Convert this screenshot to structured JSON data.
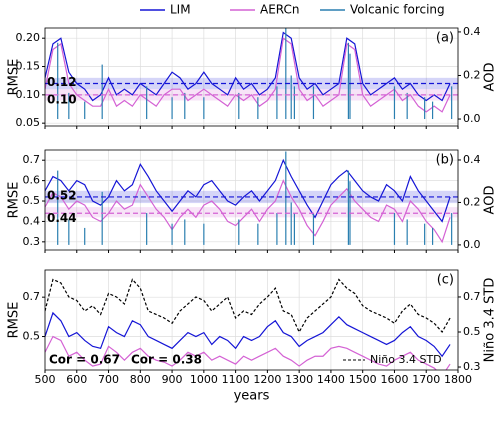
{
  "chart_data": [
    {
      "type": "line",
      "panel_label": "(a)",
      "ylabel": "RMSE",
      "y2label": "AOD",
      "xlim": [
        500,
        1800
      ],
      "xticks": [
        500,
        600,
        700,
        800,
        900,
        1000,
        1100,
        1200,
        1300,
        1400,
        1500,
        1600,
        1700,
        1800
      ],
      "ylim": [
        0.045,
        0.218
      ],
      "yticks": [
        0.05,
        {
          "value": 0.1,
          "label": "0.10"
        },
        0.15,
        {
          "value": 0.2,
          "label": "0.20"
        }
      ],
      "y2lim": [
        -0.032,
        0.418
      ],
      "y2ticks": [
        {
          "value": 0,
          "label": "0.0"
        },
        0.2,
        0.4
      ],
      "grid": true,
      "hlines": [
        {
          "value": 0.12,
          "label": "0.12",
          "color": "#1515d6",
          "band": [
            0.11,
            0.13
          ]
        },
        {
          "value": 0.1,
          "label": "0.10",
          "color": "#d462d4",
          "band": [
            0.09,
            0.11
          ]
        }
      ],
      "x": [
        500,
        525,
        550,
        575,
        600,
        625,
        650,
        675,
        700,
        725,
        750,
        775,
        800,
        825,
        850,
        875,
        900,
        925,
        950,
        975,
        1000,
        1025,
        1050,
        1075,
        1100,
        1125,
        1150,
        1175,
        1200,
        1225,
        1250,
        1275,
        1300,
        1325,
        1350,
        1375,
        1400,
        1425,
        1450,
        1475,
        1500,
        1525,
        1550,
        1575,
        1600,
        1625,
        1650,
        1675,
        1700,
        1725,
        1750,
        1775
      ],
      "series": [
        {
          "name": "LIM",
          "color": "#1515d6",
          "values": [
            0.13,
            0.19,
            0.2,
            0.14,
            0.12,
            0.11,
            0.09,
            0.1,
            0.13,
            0.1,
            0.11,
            0.1,
            0.12,
            0.11,
            0.1,
            0.12,
            0.14,
            0.13,
            0.11,
            0.12,
            0.14,
            0.12,
            0.11,
            0.1,
            0.13,
            0.11,
            0.12,
            0.1,
            0.11,
            0.13,
            0.21,
            0.2,
            0.13,
            0.11,
            0.12,
            0.1,
            0.11,
            0.12,
            0.2,
            0.19,
            0.12,
            0.1,
            0.11,
            0.12,
            0.13,
            0.11,
            0.12,
            0.1,
            0.09,
            0.1,
            0.09,
            0.12
          ]
        },
        {
          "name": "AERCn",
          "color": "#d462d4",
          "values": [
            0.11,
            0.18,
            0.19,
            0.12,
            0.1,
            0.09,
            0.08,
            0.08,
            0.11,
            0.08,
            0.09,
            0.08,
            0.1,
            0.09,
            0.08,
            0.1,
            0.11,
            0.11,
            0.09,
            0.1,
            0.11,
            0.1,
            0.09,
            0.08,
            0.1,
            0.09,
            0.1,
            0.08,
            0.09,
            0.11,
            0.2,
            0.19,
            0.11,
            0.09,
            0.1,
            0.08,
            0.09,
            0.1,
            0.19,
            0.18,
            0.1,
            0.08,
            0.09,
            0.1,
            0.11,
            0.09,
            0.1,
            0.08,
            0.07,
            0.08,
            0.07,
            0.1
          ]
        },
        {
          "name": "Volcanic forcing",
          "color": "#2a7fb0",
          "type": "spike",
          "axis": "y2",
          "x": [
            540,
            575,
            625,
            680,
            820,
            900,
            940,
            1000,
            1110,
            1170,
            1230,
            1258,
            1275,
            1285,
            1345,
            1455,
            1460,
            1600,
            1640,
            1695,
            1720,
            1780
          ],
          "values": [
            0.35,
            0.12,
            0.08,
            0.25,
            0.15,
            0.1,
            0.12,
            0.1,
            0.12,
            0.1,
            0.15,
            0.44,
            0.2,
            0.15,
            0.15,
            0.35,
            0.3,
            0.15,
            0.12,
            0.1,
            0.08,
            0.15
          ]
        }
      ]
    },
    {
      "type": "line",
      "panel_label": "(b)",
      "ylabel": "RMSE",
      "y2label": "AOD",
      "xlim": [
        500,
        1800
      ],
      "xticks": [
        500,
        600,
        700,
        800,
        900,
        1000,
        1100,
        1200,
        1300,
        1400,
        1500,
        1600,
        1700,
        1800
      ],
      "ylim": [
        0.26,
        0.75
      ],
      "yticks": [
        0.3,
        0.4,
        0.5,
        0.6,
        0.7
      ],
      "y2lim": [
        -0.024,
        0.447
      ],
      "y2ticks": [
        {
          "value": 0,
          "label": "0.0"
        },
        0.2,
        0.4
      ],
      "grid": true,
      "hlines": [
        {
          "value": 0.52,
          "label": "0.52",
          "color": "#1515d6",
          "band": [
            0.49,
            0.55
          ]
        },
        {
          "value": 0.44,
          "label": "0.44",
          "color": "#d462d4",
          "band": [
            0.42,
            0.47
          ]
        }
      ],
      "x": [
        500,
        525,
        550,
        575,
        600,
        625,
        650,
        675,
        700,
        725,
        750,
        775,
        800,
        825,
        850,
        875,
        900,
        925,
        950,
        975,
        1000,
        1025,
        1050,
        1075,
        1100,
        1125,
        1150,
        1175,
        1200,
        1225,
        1250,
        1275,
        1300,
        1325,
        1350,
        1375,
        1400,
        1425,
        1450,
        1475,
        1500,
        1525,
        1550,
        1575,
        1600,
        1625,
        1650,
        1675,
        1700,
        1725,
        1750,
        1775
      ],
      "series": [
        {
          "name": "LIM",
          "color": "#1515d6",
          "values": [
            0.55,
            0.62,
            0.6,
            0.55,
            0.6,
            0.58,
            0.5,
            0.48,
            0.52,
            0.6,
            0.55,
            0.58,
            0.68,
            0.62,
            0.55,
            0.5,
            0.45,
            0.5,
            0.55,
            0.52,
            0.58,
            0.6,
            0.55,
            0.5,
            0.48,
            0.52,
            0.55,
            0.5,
            0.55,
            0.6,
            0.7,
            0.62,
            0.55,
            0.48,
            0.42,
            0.5,
            0.58,
            0.62,
            0.65,
            0.6,
            0.55,
            0.52,
            0.5,
            0.58,
            0.55,
            0.5,
            0.62,
            0.55,
            0.5,
            0.45,
            0.4,
            0.52
          ]
        },
        {
          "name": "AERCn",
          "color": "#d462d4",
          "values": [
            0.47,
            0.54,
            0.52,
            0.46,
            0.5,
            0.48,
            0.42,
            0.4,
            0.44,
            0.5,
            0.46,
            0.48,
            0.58,
            0.52,
            0.46,
            0.42,
            0.36,
            0.42,
            0.46,
            0.42,
            0.48,
            0.5,
            0.46,
            0.4,
            0.38,
            0.42,
            0.46,
            0.4,
            0.46,
            0.5,
            0.6,
            0.52,
            0.46,
            0.38,
            0.33,
            0.4,
            0.48,
            0.52,
            0.56,
            0.5,
            0.46,
            0.42,
            0.4,
            0.48,
            0.46,
            0.4,
            0.5,
            0.46,
            0.4,
            0.36,
            0.3,
            0.42
          ]
        },
        {
          "name": "Volcanic forcing",
          "color": "#2a7fb0",
          "type": "spike",
          "axis": "y2",
          "x": [
            540,
            575,
            625,
            680,
            820,
            900,
            940,
            1000,
            1110,
            1170,
            1230,
            1258,
            1275,
            1285,
            1345,
            1455,
            1460,
            1600,
            1640,
            1695,
            1720,
            1780
          ],
          "values": [
            0.35,
            0.12,
            0.08,
            0.25,
            0.15,
            0.1,
            0.12,
            0.1,
            0.12,
            0.1,
            0.15,
            0.44,
            0.2,
            0.15,
            0.15,
            0.35,
            0.3,
            0.15,
            0.12,
            0.1,
            0.08,
            0.15
          ]
        }
      ]
    },
    {
      "type": "line",
      "panel_label": "(c)",
      "ylabel": "RMSE",
      "y2label": "Niño 3.4 STD",
      "xlabel": "years",
      "xlim": [
        500,
        1800
      ],
      "xticks": [
        500,
        600,
        700,
        800,
        900,
        1000,
        1100,
        1200,
        1300,
        1400,
        1500,
        1600,
        1700,
        1800
      ],
      "xtick_labels": true,
      "ylim": [
        0.33,
        0.838
      ],
      "yticks": [
        0.5,
        0.7
      ],
      "y2lim": [
        0.283,
        0.854
      ],
      "y2ticks": [
        0.3,
        0.5,
        0.7
      ],
      "grid": true,
      "legend": "lower right",
      "annotations": [
        {
          "text": "Cor = 0.67",
          "color": "#1515d6"
        },
        {
          "text": "Cor = 0.38",
          "color": "#d462d4"
        }
      ],
      "x": [
        500,
        525,
        550,
        575,
        600,
        625,
        650,
        675,
        700,
        725,
        750,
        775,
        800,
        825,
        850,
        875,
        900,
        925,
        950,
        975,
        1000,
        1025,
        1050,
        1075,
        1100,
        1125,
        1150,
        1175,
        1200,
        1225,
        1250,
        1275,
        1300,
        1325,
        1350,
        1375,
        1400,
        1425,
        1450,
        1475,
        1500,
        1525,
        1550,
        1575,
        1600,
        1625,
        1650,
        1675,
        1700,
        1725,
        1750,
        1775
      ],
      "series": [
        {
          "name": "LIM",
          "color": "#1515d6",
          "values": [
            0.5,
            0.62,
            0.58,
            0.5,
            0.52,
            0.48,
            0.45,
            0.44,
            0.55,
            0.52,
            0.5,
            0.58,
            0.56,
            0.5,
            0.48,
            0.46,
            0.44,
            0.48,
            0.52,
            0.5,
            0.52,
            0.46,
            0.5,
            0.48,
            0.44,
            0.5,
            0.48,
            0.5,
            0.55,
            0.58,
            0.52,
            0.5,
            0.45,
            0.48,
            0.5,
            0.52,
            0.56,
            0.6,
            0.56,
            0.54,
            0.52,
            0.5,
            0.48,
            0.46,
            0.48,
            0.52,
            0.55,
            0.5,
            0.48,
            0.45,
            0.4,
            0.46
          ]
        },
        {
          "name": "AERCn",
          "color": "#d462d4",
          "values": [
            0.42,
            0.5,
            0.48,
            0.4,
            0.42,
            0.38,
            0.35,
            0.36,
            0.45,
            0.42,
            0.38,
            0.42,
            0.44,
            0.4,
            0.38,
            0.37,
            0.35,
            0.38,
            0.42,
            0.4,
            0.42,
            0.38,
            0.4,
            0.38,
            0.36,
            0.4,
            0.38,
            0.4,
            0.42,
            0.44,
            0.4,
            0.38,
            0.35,
            0.38,
            0.4,
            0.4,
            0.44,
            0.45,
            0.44,
            0.42,
            0.4,
            0.38,
            0.36,
            0.35,
            0.38,
            0.4,
            0.42,
            0.38,
            0.36,
            0.34,
            0.3,
            0.36
          ]
        },
        {
          "name": "Niño 3.4 STD",
          "color": "#000000",
          "linestyle": "dashed",
          "axis": "y2",
          "values": [
            0.62,
            0.8,
            0.78,
            0.7,
            0.68,
            0.62,
            0.65,
            0.6,
            0.72,
            0.7,
            0.66,
            0.8,
            0.75,
            0.62,
            0.6,
            0.58,
            0.55,
            0.62,
            0.66,
            0.7,
            0.68,
            0.62,
            0.66,
            0.7,
            0.58,
            0.62,
            0.6,
            0.66,
            0.7,
            0.75,
            0.62,
            0.6,
            0.5,
            0.58,
            0.62,
            0.66,
            0.7,
            0.8,
            0.75,
            0.72,
            0.65,
            0.62,
            0.6,
            0.58,
            0.55,
            0.62,
            0.66,
            0.6,
            0.58,
            0.55,
            0.5,
            0.58
          ]
        }
      ]
    }
  ]
}
